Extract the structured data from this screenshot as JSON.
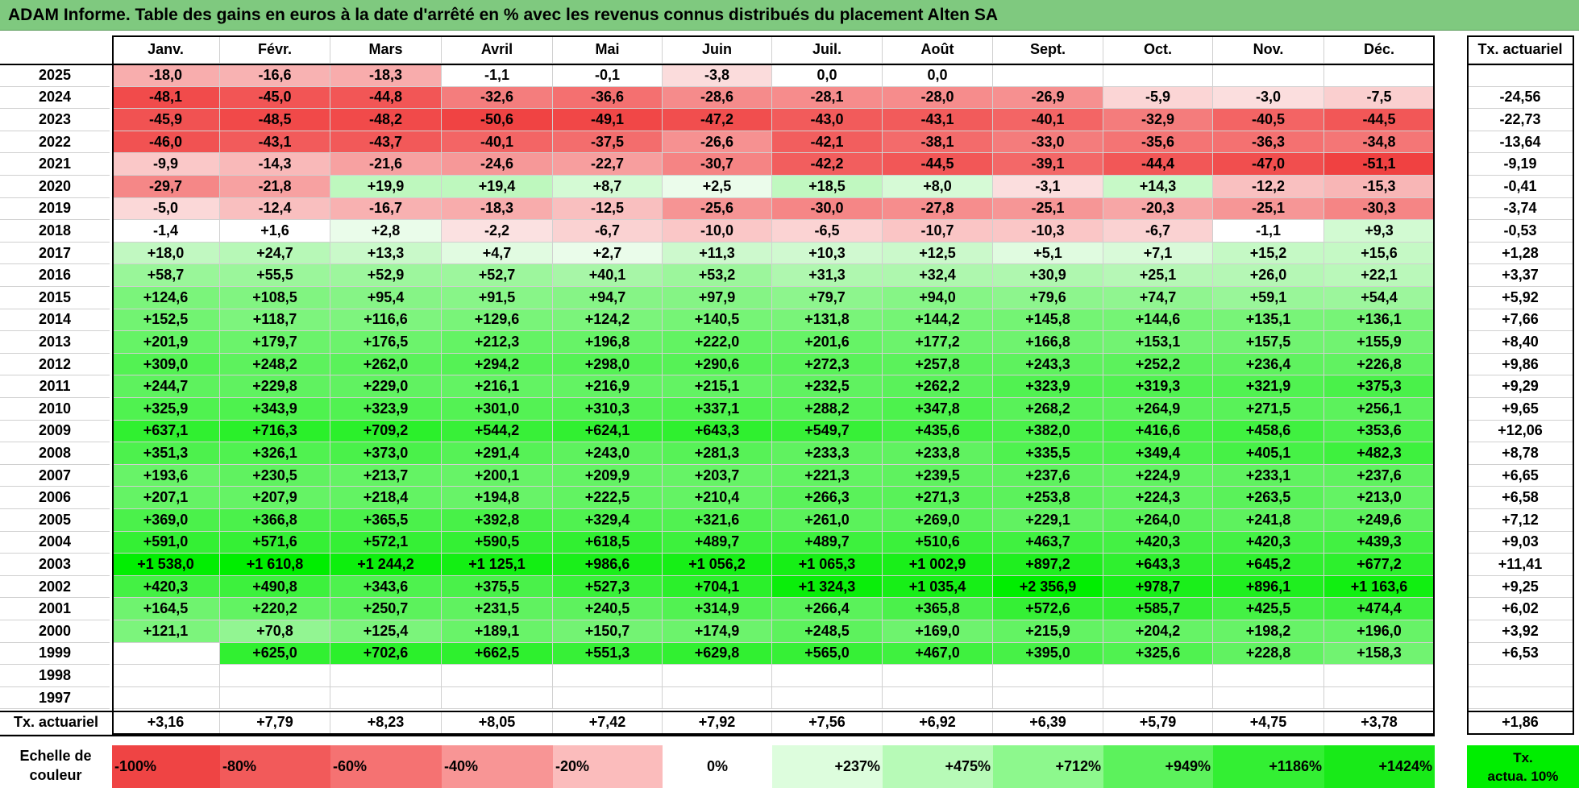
{
  "title": "ADAM Informe. Table des gains en euros à la date d'arrêté en % avec les revenus connus distribués du placement Alten SA",
  "months": [
    "Janv.",
    "Févr.",
    "Mars",
    "Avril",
    "Mai",
    "Juin",
    "Juil.",
    "Août",
    "Sept.",
    "Oct.",
    "Nov.",
    "Déc."
  ],
  "actuarial_header": "Tx. actuariel",
  "rows": [
    {
      "year": "2025",
      "values": [
        "-18,0",
        "-16,6",
        "-18,3",
        "-1,1",
        "-0,1",
        "-3,8",
        "0,0",
        "0,0",
        "",
        "",
        "",
        ""
      ],
      "actuarial": ""
    },
    {
      "year": "2024",
      "values": [
        "-48,1",
        "-45,0",
        "-44,8",
        "-32,6",
        "-36,6",
        "-28,6",
        "-28,1",
        "-28,0",
        "-26,9",
        "-5,9",
        "-3,0",
        "-7,5"
      ],
      "actuarial": "-24,56"
    },
    {
      "year": "2023",
      "values": [
        "-45,9",
        "-48,5",
        "-48,2",
        "-50,6",
        "-49,1",
        "-47,2",
        "-43,0",
        "-43,1",
        "-40,1",
        "-32,9",
        "-40,5",
        "-44,5"
      ],
      "actuarial": "-22,73"
    },
    {
      "year": "2022",
      "values": [
        "-46,0",
        "-43,1",
        "-43,7",
        "-40,1",
        "-37,5",
        "-26,6",
        "-42,1",
        "-38,1",
        "-33,0",
        "-35,6",
        "-36,3",
        "-34,8"
      ],
      "actuarial": "-13,64"
    },
    {
      "year": "2021",
      "values": [
        "-9,9",
        "-14,3",
        "-21,6",
        "-24,6",
        "-22,7",
        "-30,7",
        "-42,2",
        "-44,5",
        "-39,1",
        "-44,4",
        "-47,0",
        "-51,1"
      ],
      "actuarial": "-9,19"
    },
    {
      "year": "2020",
      "values": [
        "-29,7",
        "-21,8",
        "+19,9",
        "+19,4",
        "+8,7",
        "+2,5",
        "+18,5",
        "+8,0",
        "-3,1",
        "+14,3",
        "-12,2",
        "-15,3"
      ],
      "actuarial": "-0,41"
    },
    {
      "year": "2019",
      "values": [
        "-5,0",
        "-12,4",
        "-16,7",
        "-18,3",
        "-12,5",
        "-25,6",
        "-30,0",
        "-27,8",
        "-25,1",
        "-20,3",
        "-25,1",
        "-30,3"
      ],
      "actuarial": "-3,74"
    },
    {
      "year": "2018",
      "values": [
        "-1,4",
        "+1,6",
        "+2,8",
        "-2,2",
        "-6,7",
        "-10,0",
        "-6,5",
        "-10,7",
        "-10,3",
        "-6,7",
        "-1,1",
        "+9,3"
      ],
      "actuarial": "-0,53"
    },
    {
      "year": "2017",
      "values": [
        "+18,0",
        "+24,7",
        "+13,3",
        "+4,7",
        "+2,7",
        "+11,3",
        "+10,3",
        "+12,5",
        "+5,1",
        "+7,1",
        "+15,2",
        "+15,6"
      ],
      "actuarial": "+1,28"
    },
    {
      "year": "2016",
      "values": [
        "+58,7",
        "+55,5",
        "+52,9",
        "+52,7",
        "+40,1",
        "+53,2",
        "+31,3",
        "+32,4",
        "+30,9",
        "+25,1",
        "+26,0",
        "+22,1"
      ],
      "actuarial": "+3,37"
    },
    {
      "year": "2015",
      "values": [
        "+124,6",
        "+108,5",
        "+95,4",
        "+91,5",
        "+94,7",
        "+97,9",
        "+79,7",
        "+94,0",
        "+79,6",
        "+74,7",
        "+59,1",
        "+54,4"
      ],
      "actuarial": "+5,92"
    },
    {
      "year": "2014",
      "values": [
        "+152,5",
        "+118,7",
        "+116,6",
        "+129,6",
        "+124,2",
        "+140,5",
        "+131,8",
        "+144,2",
        "+145,8",
        "+144,6",
        "+135,1",
        "+136,1"
      ],
      "actuarial": "+7,66"
    },
    {
      "year": "2013",
      "values": [
        "+201,9",
        "+179,7",
        "+176,5",
        "+212,3",
        "+196,8",
        "+222,0",
        "+201,6",
        "+177,2",
        "+166,8",
        "+153,1",
        "+157,5",
        "+155,9"
      ],
      "actuarial": "+8,40"
    },
    {
      "year": "2012",
      "values": [
        "+309,0",
        "+248,2",
        "+262,0",
        "+294,2",
        "+298,0",
        "+290,6",
        "+272,3",
        "+257,8",
        "+243,3",
        "+252,2",
        "+236,4",
        "+226,8"
      ],
      "actuarial": "+9,86"
    },
    {
      "year": "2011",
      "values": [
        "+244,7",
        "+229,8",
        "+229,0",
        "+216,1",
        "+216,9",
        "+215,1",
        "+232,5",
        "+262,2",
        "+323,9",
        "+319,3",
        "+321,9",
        "+375,3"
      ],
      "actuarial": "+9,29"
    },
    {
      "year": "2010",
      "values": [
        "+325,9",
        "+343,9",
        "+323,9",
        "+301,0",
        "+310,3",
        "+337,1",
        "+288,2",
        "+347,8",
        "+268,2",
        "+264,9",
        "+271,5",
        "+256,1"
      ],
      "actuarial": "+9,65"
    },
    {
      "year": "2009",
      "values": [
        "+637,1",
        "+716,3",
        "+709,2",
        "+544,2",
        "+624,1",
        "+643,3",
        "+549,7",
        "+435,6",
        "+382,0",
        "+416,6",
        "+458,6",
        "+353,6"
      ],
      "actuarial": "+12,06"
    },
    {
      "year": "2008",
      "values": [
        "+351,3",
        "+326,1",
        "+373,0",
        "+291,4",
        "+243,0",
        "+281,3",
        "+233,3",
        "+233,8",
        "+335,5",
        "+349,4",
        "+405,1",
        "+482,3"
      ],
      "actuarial": "+8,78"
    },
    {
      "year": "2007",
      "values": [
        "+193,6",
        "+230,5",
        "+213,7",
        "+200,1",
        "+209,9",
        "+203,7",
        "+221,3",
        "+239,5",
        "+237,6",
        "+224,9",
        "+233,1",
        "+237,6"
      ],
      "actuarial": "+6,65"
    },
    {
      "year": "2006",
      "values": [
        "+207,1",
        "+207,9",
        "+218,4",
        "+194,8",
        "+222,5",
        "+210,4",
        "+266,3",
        "+271,3",
        "+253,8",
        "+224,3",
        "+263,5",
        "+213,0"
      ],
      "actuarial": "+6,58"
    },
    {
      "year": "2005",
      "values": [
        "+369,0",
        "+366,8",
        "+365,5",
        "+392,8",
        "+329,4",
        "+321,6",
        "+261,0",
        "+269,0",
        "+229,1",
        "+264,0",
        "+241,8",
        "+249,6"
      ],
      "actuarial": "+7,12"
    },
    {
      "year": "2004",
      "values": [
        "+591,0",
        "+571,6",
        "+572,1",
        "+590,5",
        "+618,5",
        "+489,7",
        "+489,7",
        "+510,6",
        "+463,7",
        "+420,3",
        "+420,3",
        "+439,3"
      ],
      "actuarial": "+9,03"
    },
    {
      "year": "2003",
      "values": [
        "+1 538,0",
        "+1 610,8",
        "+1 244,2",
        "+1 125,1",
        "+986,6",
        "+1 056,2",
        "+1 065,3",
        "+1 002,9",
        "+897,2",
        "+643,3",
        "+645,2",
        "+677,2"
      ],
      "actuarial": "+11,41"
    },
    {
      "year": "2002",
      "values": [
        "+420,3",
        "+490,8",
        "+343,6",
        "+375,5",
        "+527,3",
        "+704,1",
        "+1 324,3",
        "+1 035,4",
        "+2 356,9",
        "+978,7",
        "+896,1",
        "+1 163,6"
      ],
      "actuarial": "+9,25"
    },
    {
      "year": "2001",
      "values": [
        "+164,5",
        "+220,2",
        "+250,7",
        "+231,5",
        "+240,5",
        "+314,9",
        "+266,4",
        "+365,8",
        "+572,6",
        "+585,7",
        "+425,5",
        "+474,4"
      ],
      "actuarial": "+6,02"
    },
    {
      "year": "2000",
      "values": [
        "+121,1",
        "+70,8",
        "+125,4",
        "+189,1",
        "+150,7",
        "+174,9",
        "+248,5",
        "+169,0",
        "+215,9",
        "+204,2",
        "+198,2",
        "+196,0"
      ],
      "actuarial": "+3,92"
    },
    {
      "year": "1999",
      "values": [
        "",
        "+625,0",
        "+702,6",
        "+662,5",
        "+551,3",
        "+629,8",
        "+565,0",
        "+467,0",
        "+395,0",
        "+325,6",
        "+228,8",
        "+158,3"
      ],
      "actuarial": "+6,53"
    },
    {
      "year": "1998",
      "values": [
        "",
        "",
        "",
        "",
        "",
        "",
        "",
        "",
        "",
        "",
        "",
        ""
      ],
      "actuarial": ""
    },
    {
      "year": "1997",
      "values": [
        "",
        "",
        "",
        "",
        "",
        "",
        "",
        "",
        "",
        "",
        "",
        ""
      ],
      "actuarial": ""
    }
  ],
  "footer": {
    "label": "Tx. actuariel",
    "values": [
      "+3,16",
      "+7,79",
      "+8,23",
      "+8,05",
      "+7,42",
      "+7,92",
      "+7,56",
      "+6,92",
      "+6,39",
      "+5,79",
      "+4,75",
      "+3,78"
    ],
    "actuarial": "+1,86"
  },
  "color_scale": {
    "label_line1": "Echelle de",
    "label_line2": "couleur",
    "steps": [
      {
        "label": "-100%",
        "color": "#ef4444"
      },
      {
        "label": "-80%",
        "color": "#f25a5a"
      },
      {
        "label": "-60%",
        "color": "#f57272"
      },
      {
        "label": "-40%",
        "color": "#f89595"
      },
      {
        "label": "-20%",
        "color": "#fbbcbc"
      },
      {
        "label": "0%",
        "color": "#ffffff"
      },
      {
        "label": "+237%",
        "color": "#ddfddd"
      },
      {
        "label": "+475%",
        "color": "#b7fab7"
      },
      {
        "label": "+712%",
        "color": "#8df88d"
      },
      {
        "label": "+949%",
        "color": "#5cf25c"
      },
      {
        "label": "+1186%",
        "color": "#33ef33"
      },
      {
        "label": "+1424%",
        "color": "#18ea18"
      }
    ],
    "actuarial_label_line1": "Tx.",
    "actuarial_label_line2": "actua. 10%",
    "actuarial_color": "#00ee00"
  }
}
